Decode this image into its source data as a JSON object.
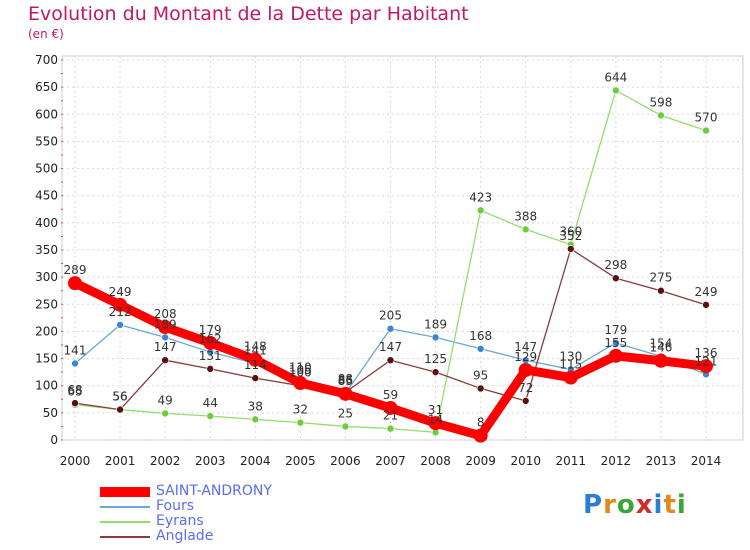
{
  "header": {
    "title": "Evolution du Montant de la Dette par Habitant",
    "subtitle": "(en €)"
  },
  "logo": {
    "text": "Proxiti",
    "colors": [
      "#2a7fd4",
      "#e08a1e",
      "#3aa63a",
      "#d42a2a",
      "#2a7fd4",
      "#e08a1e",
      "#3aa63a"
    ]
  },
  "chart_data": {
    "type": "line",
    "title": "Evolution du Montant de la Dette par Habitant",
    "ylabel": "(en €)",
    "xlabel": "",
    "ylim": [
      0,
      700
    ],
    "yticks": [
      0,
      50,
      100,
      150,
      200,
      250,
      300,
      350,
      400,
      450,
      500,
      550,
      600,
      650,
      700
    ],
    "x": [
      "2000",
      "2001",
      "2002",
      "2003",
      "2004",
      "2005",
      "2006",
      "2007",
      "2008",
      "2009",
      "2010",
      "2011",
      "2012",
      "2013",
      "2014"
    ],
    "grid": true,
    "legend_position": "bottom-left",
    "series": [
      {
        "name": "SAINT-ANDRONY",
        "color": "#ff0000",
        "point_color": "#ff0000",
        "width": 9,
        "values": [
          289,
          249,
          208,
          179,
          148,
          105,
          85,
          59,
          31,
          8,
          129,
          115,
          155,
          146,
          136
        ]
      },
      {
        "name": "Fours",
        "color": "#6aa8d8",
        "point_color": "#3a86d0",
        "width": 1.3,
        "values": [
          141,
          212,
          189,
          162,
          141,
          110,
          86,
          205,
          189,
          168,
          147,
          130,
          179,
          154,
          121
        ]
      },
      {
        "name": "Eyrans",
        "color": "#8fe06a",
        "point_color": "#6ccc3c",
        "width": 1.3,
        "values": [
          65,
          56,
          49,
          44,
          38,
          32,
          25,
          21,
          14,
          423,
          388,
          360,
          644,
          598,
          570
        ]
      },
      {
        "name": "Anglade",
        "color": "#8b3a3a",
        "point_color": "#5a1010",
        "width": 1.3,
        "values": [
          68,
          56,
          147,
          131,
          114,
          100,
          88,
          147,
          125,
          95,
          72,
          352,
          298,
          275,
          249
        ]
      }
    ]
  }
}
